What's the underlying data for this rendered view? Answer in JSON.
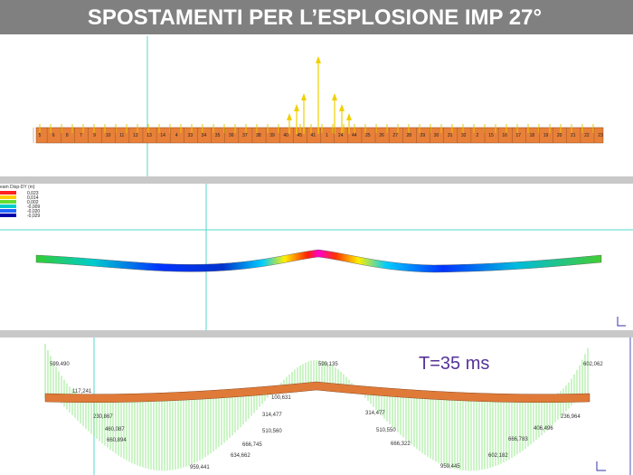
{
  "header": {
    "title": "SPOSTAMENTI PER L’ESPLOSIONE IMP 27°"
  },
  "panel_loads": {
    "node_labels": [
      "5",
      "6",
      "8",
      "7",
      "9",
      "10",
      "11",
      "12",
      "13",
      "14",
      "4",
      "33",
      "34",
      "35",
      "36",
      "37",
      "38",
      "39",
      "40",
      "45",
      "41",
      "1",
      "24",
      "44",
      "25",
      "26",
      "27",
      "28",
      "29",
      "30",
      "31",
      "32",
      "2",
      "15",
      "16",
      "17",
      "18",
      "19",
      "20",
      "21",
      "22",
      "23"
    ]
  },
  "panel_displacement": {
    "legend_title": "eam Disp-DY (m)",
    "legend_values": [
      "0,023",
      "0,014",
      "0,002",
      "-0,009",
      "-0,020",
      "-0,029"
    ]
  },
  "panel_moment": {
    "time_label": "T=35 ms",
    "labels": [
      "599,490",
      "117,241",
      "230,867",
      "460,087",
      "660,894",
      "959,441",
      "634,662",
      "666,745",
      "510,560",
      "314,477",
      "100,631",
      "599,135",
      "314,477",
      "510,550",
      "666,322",
      "959,445",
      "602,182",
      "666,783",
      "406,496",
      "236,964",
      "602,062"
    ]
  }
}
